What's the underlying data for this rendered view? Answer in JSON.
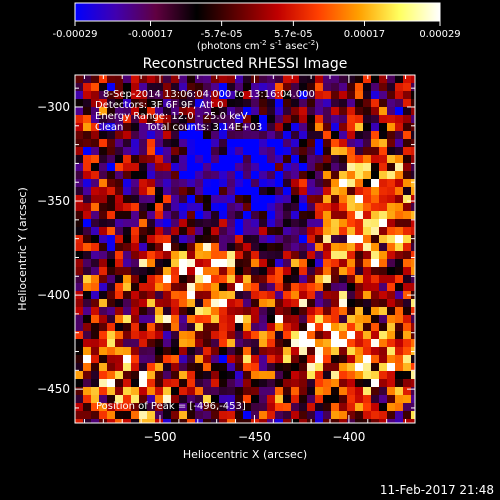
{
  "colorbar": {
    "tick_labels": [
      "-0.00029",
      "-0.00017",
      "-5.7e-05",
      "5.7e-05",
      "0.00017",
      "0.00029"
    ],
    "ticks": [
      -0.00029,
      -0.00017,
      -5.7e-05,
      5.7e-05,
      0.00017,
      0.00029
    ],
    "range": [
      -0.00029,
      0.00029
    ],
    "units_main": "(photons cm",
    "units_exp1": "-2",
    "units_mid1": " s",
    "units_exp2": "-1",
    "units_mid2": " asec",
    "units_exp3": "-2",
    "units_end": ")",
    "colors": [
      "#0000ff",
      "#4000b0",
      "#600040",
      "#000000",
      "#600000",
      "#c00000",
      "#ff4000",
      "#ffa000",
      "#ffff60",
      "#ffffff"
    ]
  },
  "image_title": "Reconstructed RHESSI Image",
  "annotations": {
    "time_range": "8-Sep-2014 13:06:04.000 to 13:16:04.000",
    "detectors": "Detectors: 3F 6F 9F, Att 0",
    "energy": "Energy Range: 12.0 - 25.0 keV",
    "clean": "Clean",
    "total_counts": "Total counts: 3.14E+03",
    "peak": "Position of Peak = [-496,-453]"
  },
  "footer_timestamp": "11-Feb-2017 21:48",
  "chart_data": {
    "type": "heatmap",
    "title": "Reconstructed RHESSI Image",
    "xlabel": "Heliocentric X (arcsec)",
    "ylabel": "Heliocentric Y (arcsec)",
    "x_ticks": [
      -500,
      -450,
      -400
    ],
    "x_tick_labels": [
      "−500",
      "−450",
      "−400"
    ],
    "y_ticks": [
      -300,
      -350,
      -400,
      -450
    ],
    "y_tick_labels": [
      "−300",
      "−350",
      "−400",
      "−450"
    ],
    "xlim": [
      -545,
      -365
    ],
    "ylim": [
      -468,
      -283
    ],
    "value_range": [
      -0.00029,
      0.00029
    ],
    "peak_position": [
      -496,
      -453
    ]
  }
}
